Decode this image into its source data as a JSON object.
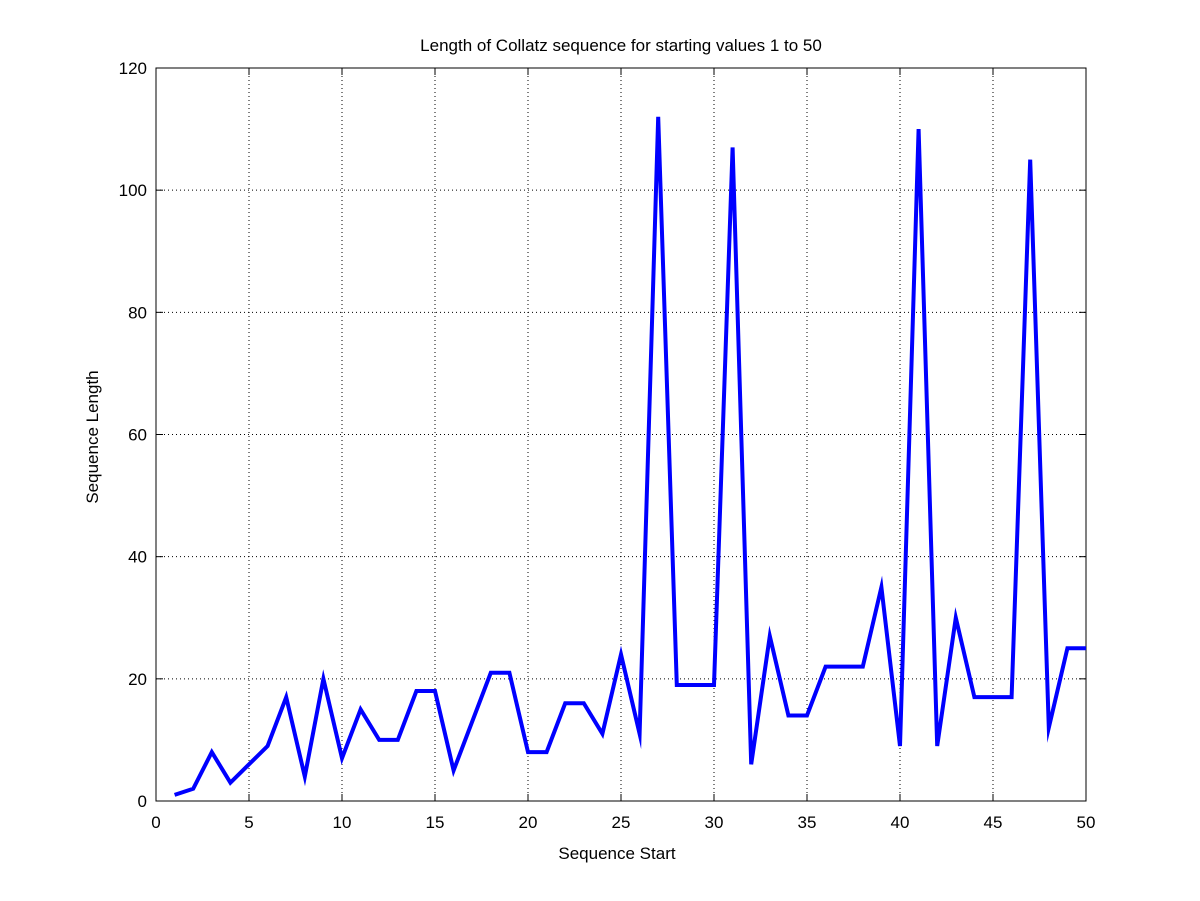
{
  "chart_data": {
    "type": "line",
    "title": "Length of Collatz sequence for starting values 1 to 50",
    "xlabel": "Sequence Start",
    "ylabel": "Sequence Length",
    "xlim": [
      0,
      50
    ],
    "ylim": [
      0,
      120
    ],
    "xticks": [
      0,
      5,
      10,
      15,
      20,
      25,
      30,
      35,
      40,
      45,
      50
    ],
    "yticks": [
      0,
      20,
      40,
      60,
      80,
      100,
      120
    ],
    "grid": true,
    "grid_style": "dotted",
    "legend": "none",
    "series": [
      {
        "color": "#0000ff",
        "x": [
          1,
          2,
          3,
          4,
          5,
          6,
          7,
          8,
          9,
          10,
          11,
          12,
          13,
          14,
          15,
          16,
          17,
          18,
          19,
          20,
          21,
          22,
          23,
          24,
          25,
          26,
          27,
          28,
          29,
          30,
          31,
          32,
          33,
          34,
          35,
          36,
          37,
          38,
          39,
          40,
          41,
          42,
          43,
          44,
          45,
          46,
          47,
          48,
          49,
          50
        ],
        "y": [
          1,
          2,
          8,
          3,
          6,
          9,
          17,
          4,
          20,
          7,
          15,
          10,
          10,
          18,
          18,
          5,
          13,
          21,
          21,
          8,
          8,
          16,
          16,
          11,
          24,
          11,
          112,
          19,
          19,
          19,
          107,
          6,
          27,
          14,
          14,
          22,
          22,
          22,
          35,
          9,
          110,
          9,
          30,
          17,
          17,
          17,
          105,
          12,
          25,
          25
        ]
      }
    ]
  }
}
